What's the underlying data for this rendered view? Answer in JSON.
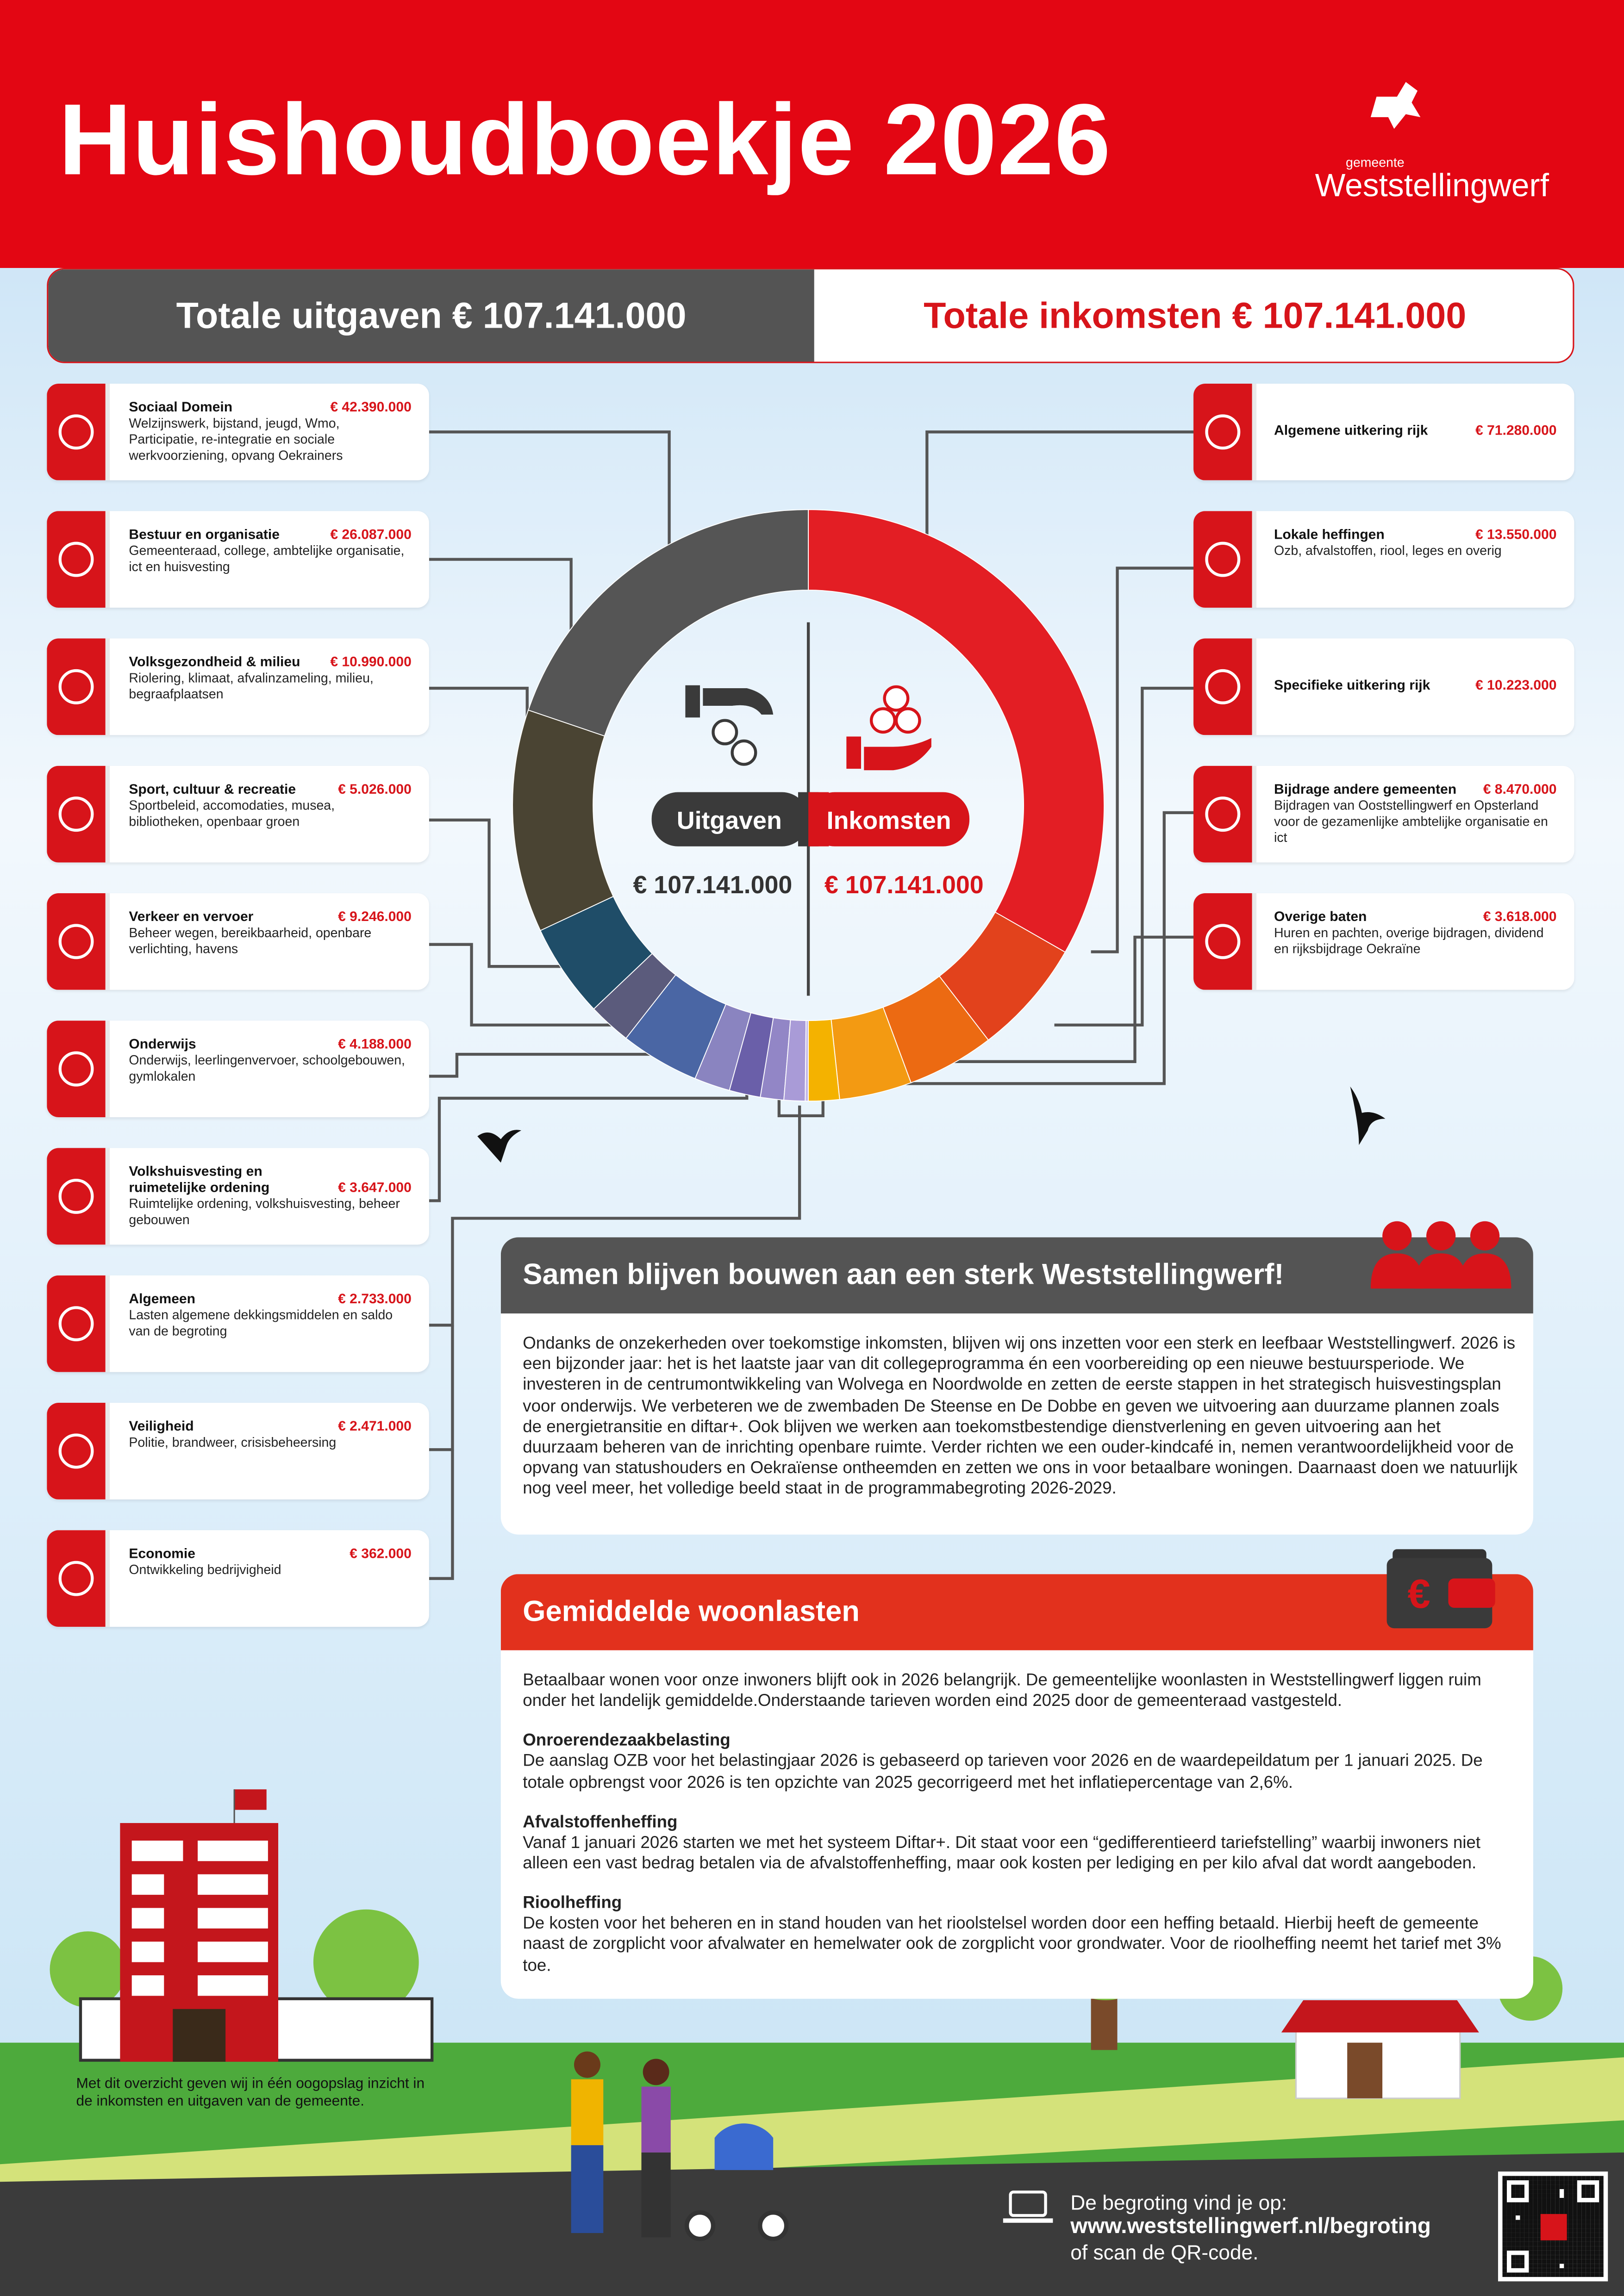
{
  "header": {
    "title": "Huishoudboekje 2026",
    "logo_small": "gemeente",
    "logo_name": "Weststellingwerf"
  },
  "totals": {
    "expenses_label": "Totale uitgaven € 107.141.000",
    "income_label": "Totale inkomsten € 107.141.000"
  },
  "donut": {
    "left_label": "Uitgaven",
    "right_label": "Inkomsten",
    "left_total": "€ 107.141.000",
    "right_total": "€ 107.141.000"
  },
  "expenses": [
    {
      "name": "Sociaal Domein",
      "description": "Welzijnswerk, bijstand, jeugd, Wmo, Participatie, re-integratie en sociale werkvoorziening, opvang Oekrainers",
      "amount_label": "€ 42.390.000",
      "amount": 42390000,
      "color": "#555555"
    },
    {
      "name": "Bestuur en organisatie",
      "description": "Gemeenteraad, college, ambtelijke organisatie, ict en huisvesting",
      "amount_label": "€ 26.087.000",
      "amount": 26087000,
      "color": "#4a4433"
    },
    {
      "name": "Volksgezondheid & milieu",
      "description": "Riolering, klimaat, afvalinzameling, milieu, begraafplaatsen",
      "amount_label": "€ 10.990.000",
      "amount": 10990000,
      "color": "#1f4d68"
    },
    {
      "name": "Sport, cultuur & recreatie",
      "description": "Sportbeleid, accomodaties, musea, bibliotheken, openbaar groen",
      "amount_label": "€ 5.026.000",
      "amount": 5026000,
      "color": "#5b5b7c"
    },
    {
      "name": "Verkeer en vervoer",
      "description": "Beheer wegen, bereikbaarheid, openbare verlichting, havens",
      "amount_label": "€ 9.246.000",
      "amount": 9246000,
      "color": "#4a66a4"
    },
    {
      "name": "Onderwijs",
      "description": "Onderwijs, leerlingenvervoer, schoolgebouwen, gymlokalen",
      "amount_label": "€ 4.188.000",
      "amount": 4188000,
      "color": "#8a84c0"
    },
    {
      "name": "Volkshuisvesting en ruimetelijke ordening",
      "description": "Ruimtelijke ordening, volkshuisvesting, beheer gebouwen",
      "amount_label": "€ 3.647.000",
      "amount": 3647000,
      "color": "#6a5fa9"
    },
    {
      "name": "Algemeen",
      "description": "Lasten algemene dekkingsmiddelen en saldo van de begroting",
      "amount_label": "€ 2.733.000",
      "amount": 2733000,
      "color": "#9286c6"
    },
    {
      "name": "Veiligheid",
      "description": "Politie, brandweer, crisisbeheersing",
      "amount_label": "€ 2.471.000",
      "amount": 2471000,
      "color": "#a99bd7"
    },
    {
      "name": "Economie",
      "description": "Ontwikkeling bedrijvigheid",
      "amount_label": "€ 362.000",
      "amount": 362000,
      "color": "#c3b7e6"
    }
  ],
  "income": [
    {
      "name": "Algemene uitkering rijk",
      "amount_label": "€ 71.280.000",
      "amount": 71280000,
      "color": "#e31e24"
    },
    {
      "name": "Lokale heffingen",
      "description": "Ozb, afvalstoffen, riool, leges en overig",
      "amount_label": "€ 13.550.000",
      "amount": 13550000,
      "color": "#e2421c"
    },
    {
      "name": "Specifieke uitkering rijk",
      "amount_label": "€ 10.223.000",
      "amount": 10223000,
      "color": "#ec6a12"
    },
    {
      "name": "Bijdrage andere gemeenten",
      "description": "Bijdragen van Ooststellingwerf en Opsterland voor de gezamenlijke ambtelijke organisatie en ict",
      "amount_label": "€ 8.470.000",
      "amount": 8470000,
      "color": "#f39a12"
    },
    {
      "name": "Overige baten",
      "description": "Huren en pachten, overige bijdragen, dividend en rijksbijdrage Oekraïne",
      "amount_label": "€ 3.618.000",
      "amount": 3618000,
      "color": "#f4b200"
    }
  ],
  "samen": {
    "title": "Samen blijven bouwen aan een sterk Weststellingwerf!",
    "text": "Ondanks de onzekerheden over toekomstige inkomsten, blijven wij ons inzetten voor een sterk en leefbaar Weststellingwerf. 2026 is een bijzonder jaar: het is het laatste jaar van dit collegeprogramma én een voorbereiding op een nieuwe bestuursperiode. We investeren in de centrumontwikkeling van Wolvega en Noordwolde en zetten de eerste stappen in het strategisch huisvestingsplan voor onderwijs. We verbeteren we de zwembaden De Steense en De Dobbe en geven we uitvoering aan duurzame plannen zoals de energietransitie en diftar+. Ook blijven we werken aan toekomstbestendige dienstverlening en geven uitvoering aan het duurzaam beheren van de inrichting openbare ruimte. Verder richten we een ouder-kindcafé in, nemen verantwoordelijkheid voor de opvang van statushouders en Oekraïense ontheemden en zetten we ons in voor betaalbare woningen. Daarnaast doen we natuurlijk nog veel meer, het volledige beeld staat in de programmabegroting 2026-2029."
  },
  "woonlasten": {
    "title": "Gemiddelde woonlasten",
    "intro": "Betaalbaar wonen voor onze inwoners blijft ook in 2026 belangrijk. De gemeentelijke woonlasten in Weststellingwerf liggen ruim onder het landelijk gemiddelde.Onderstaande tarieven worden eind 2025 door de gemeenteraad vastgesteld.",
    "sections": [
      {
        "title": "Onroerendezaakbelasting",
        "text": "De aanslag OZB voor het belastingjaar 2026 is gebaseerd op tarieven voor 2026 en de waardepeildatum per 1 januari 2025. De totale opbrengst voor 2026 is ten opzichte van 2025 gecorrigeerd met het inflatiepercentage van 2,6%."
      },
      {
        "title": "Afvalstoffenheffing",
        "text": "Vanaf 1 januari 2026 starten we met het systeem Diftar+. Dit staat voor een “gedifferentieerd tariefstelling” waarbij inwoners niet alleen een vast bedrag betalen via de afvalstoffenheffing, maar ook kosten per lediging en per kilo afval dat wordt aangeboden."
      },
      {
        "title": "Rioolheffing",
        "text": "De kosten voor het beheren en in stand houden van het rioolstelsel worden door een heffing betaald. Hierbij heeft de gemeente naast de zorgplicht voor afvalwater en hemelwater ook de zorgplicht voor grondwater. Voor de rioolheffing neemt het tarief met 3% toe."
      }
    ]
  },
  "footer": {
    "note": "Met dit overzicht geven wij in één oogopslag inzicht in de inkomsten en uitgaven van de gemeente.",
    "line1": "De begroting vind je op:",
    "url": "www.weststellingwerf.nl/begroting",
    "line3": "of scan de QR-code."
  }
}
